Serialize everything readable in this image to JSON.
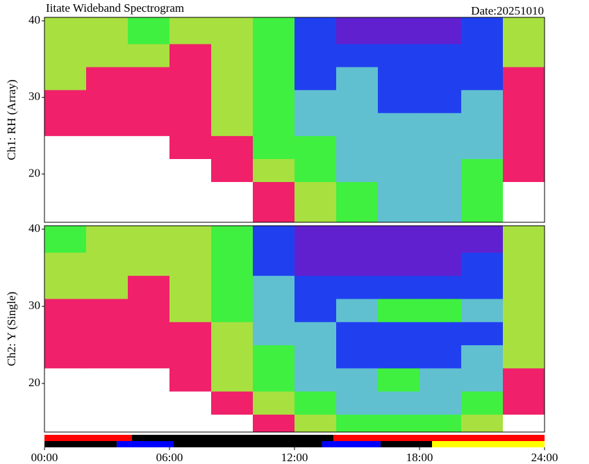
{
  "header": {
    "title": "Iitate Wideband Spectrogram",
    "date": "Date:20251010"
  },
  "colorscale": [
    "#ffffff",
    "#f0206a",
    "#a8e040",
    "#40f040",
    "#60c0d0",
    "#2040f0",
    "#6020d0"
  ],
  "chart_data": [
    {
      "type": "heatmap",
      "ylabel": "Ch1: RH (Array)",
      "xlim": [
        0,
        24
      ],
      "ylim": [
        13.7,
        40.45
      ],
      "yticks": [
        20,
        30,
        40
      ],
      "x_bins": [
        0,
        2,
        4,
        6,
        8,
        10,
        12,
        14,
        16,
        18,
        20,
        22,
        24
      ],
      "y_bins": [
        13.7,
        16,
        19,
        22,
        25,
        28,
        31,
        34,
        37,
        40.45
      ],
      "levels": [
        [
          0,
          0,
          0,
          0,
          0,
          1,
          2,
          3,
          4,
          4,
          3,
          0
        ],
        [
          0,
          0,
          0,
          0,
          0,
          1,
          2,
          3,
          4,
          4,
          3,
          0
        ],
        [
          0,
          0,
          0,
          0,
          1,
          2,
          3,
          4,
          4,
          4,
          3,
          1
        ],
        [
          0,
          0,
          0,
          1,
          1,
          3,
          3,
          4,
          4,
          4,
          4,
          1
        ],
        [
          1,
          1,
          1,
          1,
          2,
          3,
          4,
          4,
          4,
          4,
          4,
          1
        ],
        [
          1,
          1,
          1,
          1,
          2,
          3,
          4,
          4,
          5,
          5,
          4,
          1
        ],
        [
          2,
          1,
          1,
          1,
          2,
          3,
          5,
          4,
          5,
          5,
          5,
          1
        ],
        [
          2,
          2,
          2,
          1,
          2,
          3,
          5,
          5,
          5,
          5,
          5,
          2
        ],
        [
          2,
          2,
          3,
          2,
          2,
          3,
          5,
          6,
          6,
          6,
          5,
          2
        ]
      ]
    },
    {
      "type": "heatmap",
      "ylabel": "Ch2: Y (Single)",
      "xlim": [
        0,
        24
      ],
      "ylim": [
        13.7,
        40.45
      ],
      "yticks": [
        20,
        30,
        40
      ],
      "x_bins": [
        0,
        2,
        4,
        6,
        8,
        10,
        12,
        14,
        16,
        18,
        20,
        22,
        24
      ],
      "y_bins": [
        13.7,
        16,
        19,
        22,
        25,
        28,
        31,
        34,
        37,
        40.45
      ],
      "levels": [
        [
          0,
          0,
          0,
          0,
          0,
          1,
          2,
          3,
          3,
          3,
          2,
          0
        ],
        [
          0,
          0,
          0,
          0,
          1,
          2,
          3,
          4,
          4,
          4,
          3,
          1
        ],
        [
          0,
          0,
          0,
          1,
          2,
          3,
          4,
          4,
          3,
          4,
          4,
          1
        ],
        [
          1,
          1,
          1,
          1,
          2,
          3,
          4,
          5,
          5,
          5,
          4,
          2
        ],
        [
          1,
          1,
          1,
          1,
          2,
          4,
          4,
          5,
          5,
          5,
          5,
          2
        ],
        [
          1,
          1,
          1,
          2,
          3,
          4,
          5,
          4,
          3,
          3,
          4,
          2
        ],
        [
          2,
          2,
          1,
          2,
          3,
          4,
          5,
          5,
          5,
          5,
          5,
          2
        ],
        [
          2,
          2,
          2,
          2,
          3,
          5,
          6,
          6,
          6,
          6,
          5,
          2
        ],
        [
          3,
          2,
          2,
          2,
          3,
          5,
          6,
          6,
          6,
          6,
          6,
          2
        ]
      ]
    },
    {
      "type": "timeline",
      "xlim": [
        0,
        24
      ],
      "xticks": [
        {
          "value": 0,
          "label": "00:00"
        },
        {
          "value": 6,
          "label": "06:00"
        },
        {
          "value": 12,
          "label": "12:00"
        },
        {
          "value": 18,
          "label": "18:00"
        },
        {
          "value": 24,
          "label": "24:00"
        }
      ],
      "rows": [
        {
          "segments": [
            {
              "start": 0,
              "end": 4.2,
              "color": "#ff0000"
            },
            {
              "start": 4.2,
              "end": 13.87,
              "color": "#000000"
            },
            {
              "start": 13.87,
              "end": 24,
              "color": "#ff0000"
            }
          ]
        },
        {
          "segments": [
            {
              "start": 0,
              "end": 3.47,
              "color": "#000000"
            },
            {
              "start": 3.47,
              "end": 6.2,
              "color": "#0000ff"
            },
            {
              "start": 6.2,
              "end": 13.33,
              "color": "#000000"
            },
            {
              "start": 13.33,
              "end": 16.13,
              "color": "#0000ff"
            },
            {
              "start": 16.13,
              "end": 18.6,
              "color": "#000000"
            },
            {
              "start": 18.6,
              "end": 24,
              "color": "#ffff00"
            }
          ]
        }
      ]
    }
  ]
}
